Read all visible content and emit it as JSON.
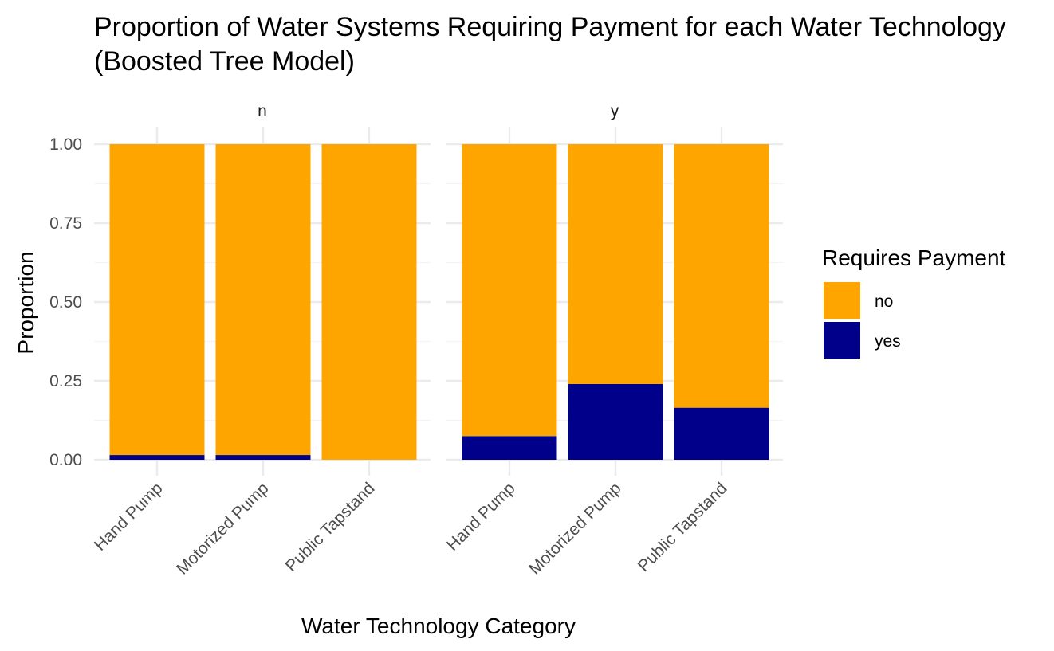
{
  "chart_data": {
    "type": "bar",
    "stacked": true,
    "position": "fill",
    "title": "Proportion of Water Systems Requiring Payment for each Water Technology",
    "subtitle": "(Boosted Tree Model)",
    "xlabel": "Water Technology Category",
    "ylabel": "Proportion",
    "ylim": [
      0,
      1
    ],
    "yticks": [
      "0.00",
      "0.25",
      "0.50",
      "0.75",
      "1.00"
    ],
    "grid": true,
    "legend": {
      "title": "Requires Payment",
      "placement": "right",
      "entries": [
        "no",
        "yes"
      ]
    },
    "colors": {
      "no": "#FFA500",
      "yes": "#00008B"
    },
    "categories": [
      "Hand Pump",
      "Motorized Pump",
      "Public Tapstand"
    ],
    "facets": [
      {
        "label": "n",
        "series": [
          {
            "name": "no",
            "values": [
              0.985,
              0.985,
              1.0
            ]
          },
          {
            "name": "yes",
            "values": [
              0.015,
              0.015,
              0.0
            ]
          }
        ]
      },
      {
        "label": "y",
        "series": [
          {
            "name": "no",
            "values": [
              0.925,
              0.76,
              0.835
            ]
          },
          {
            "name": "yes",
            "values": [
              0.075,
              0.24,
              0.165
            ]
          }
        ]
      }
    ]
  }
}
